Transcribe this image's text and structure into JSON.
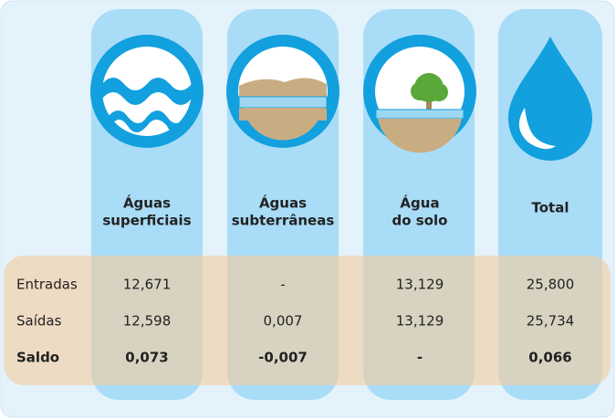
{
  "table": {
    "columns": [
      [
        "Águas",
        "superficiais"
      ],
      [
        "Águas",
        "subterrâneas"
      ],
      [
        "Água",
        "do solo"
      ],
      [
        "Total"
      ]
    ],
    "rows": [
      [
        "Entradas",
        "12,671",
        "-",
        "13,129",
        "25,800"
      ],
      [
        "Saídas",
        "12,598",
        "0,007",
        "13,129",
        "25,734"
      ],
      [
        "Saldo",
        "0,073",
        "-0,007",
        "-",
        "0,066"
      ]
    ]
  }
}
